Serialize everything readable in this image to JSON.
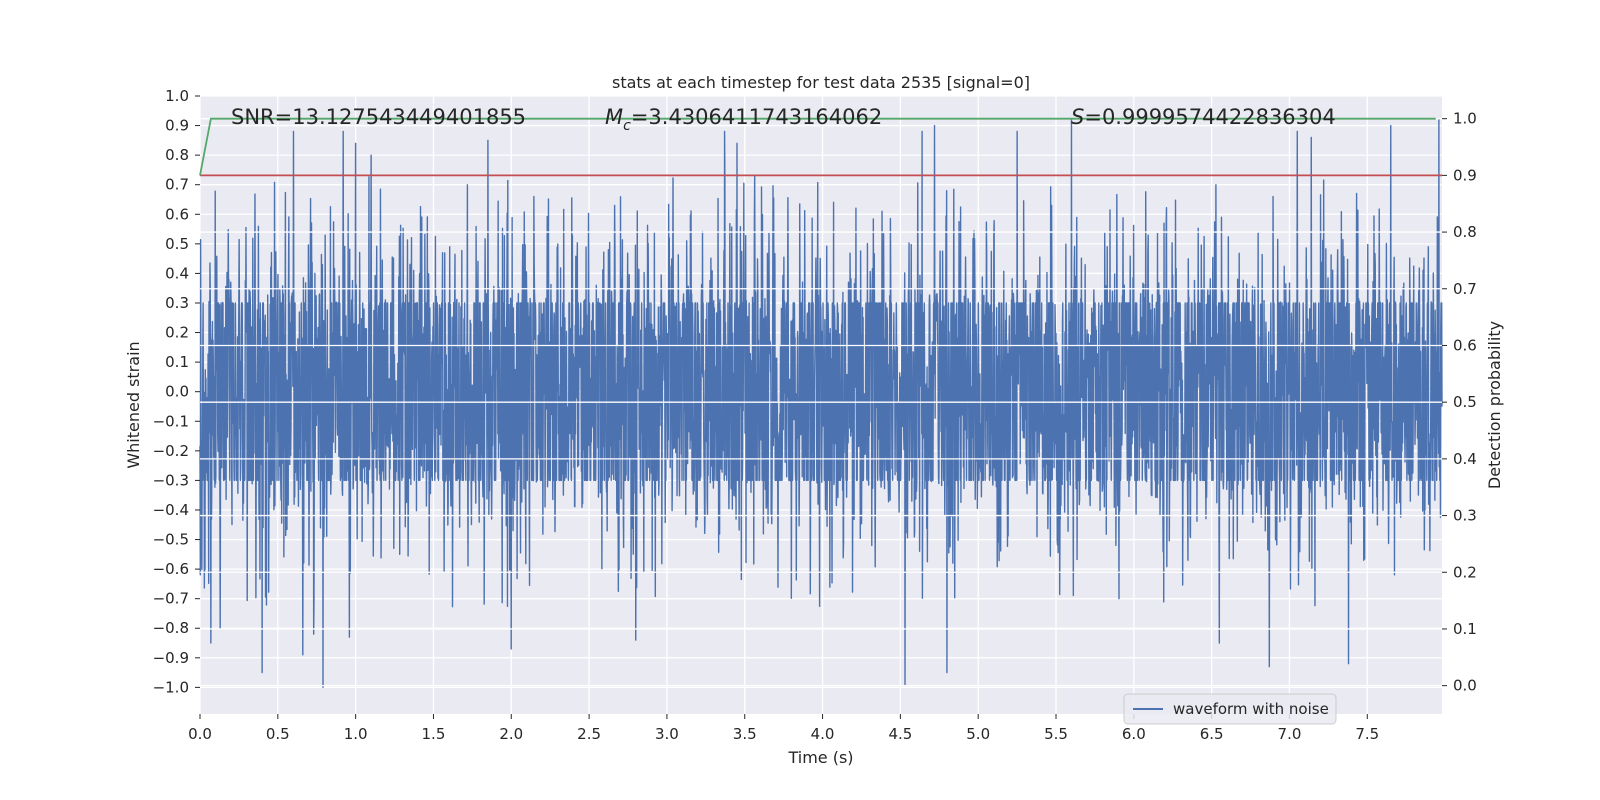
{
  "chart_data": {
    "type": "line",
    "title": "stats at each timestep for test data 2535 [signal=0]",
    "xlabel": "Time (s)",
    "ylabel": "Whitened strain",
    "y2label": "Detection probability",
    "xlim": [
      0.0,
      7.98
    ],
    "ylim": [
      -1.09,
      1.0
    ],
    "y2lim": [
      -0.05,
      1.04
    ],
    "xticks": [
      "0.0",
      "0.5",
      "1.0",
      "1.5",
      "2.0",
      "2.5",
      "3.0",
      "3.5",
      "4.0",
      "4.5",
      "5.0",
      "5.5",
      "6.0",
      "6.5",
      "7.0",
      "7.5"
    ],
    "yticks": [
      "1.0",
      "0.9",
      "0.8",
      "0.7",
      "0.6",
      "0.5",
      "0.4",
      "0.3",
      "0.2",
      "0.1",
      "0.0",
      "−0.1",
      "−0.2",
      "−0.3",
      "−0.4",
      "−0.5",
      "−0.6",
      "−0.7",
      "−0.8",
      "−0.9",
      "−1.0"
    ],
    "y2ticks": [
      "1.0",
      "0.9",
      "0.8",
      "0.7",
      "0.6",
      "0.5",
      "0.4",
      "0.3",
      "0.2",
      "0.1",
      "0.0"
    ],
    "annotations": {
      "snr": "SNR=13.127543449401855",
      "mc_symbol": "M",
      "mc_sub": "c",
      "mc_value": "=3.4306411743164062",
      "s_symbol": "S",
      "s_value": "=0.9999574422836304"
    },
    "legend": {
      "label": "waveform with noise",
      "location": "lower-right"
    },
    "series": [
      {
        "name": "waveform with noise",
        "color": "#4c72b0",
        "description": "dense noisy whitened strain, mostly within ±0.3 with peaks up to about 0.88 and troughs to about −1.0",
        "peaks": [
          {
            "t": 0.07,
            "v": -0.85
          },
          {
            "t": 0.13,
            "v": -0.8
          },
          {
            "t": 0.4,
            "v": -0.95
          },
          {
            "t": 0.6,
            "v": 0.88
          },
          {
            "t": 0.66,
            "v": -0.89
          },
          {
            "t": 0.73,
            "v": -0.82
          },
          {
            "t": 0.79,
            "v": -1.0
          },
          {
            "t": 0.92,
            "v": 0.88
          },
          {
            "t": 0.96,
            "v": -0.83
          },
          {
            "t": 1.0,
            "v": 0.84
          },
          {
            "t": 1.1,
            "v": 0.8
          },
          {
            "t": 1.85,
            "v": 0.85
          },
          {
            "t": 2.0,
            "v": -0.87
          },
          {
            "t": 2.8,
            "v": -0.84
          },
          {
            "t": 3.37,
            "v": 0.88
          },
          {
            "t": 3.45,
            "v": 0.84
          },
          {
            "t": 4.53,
            "v": -0.99
          },
          {
            "t": 4.64,
            "v": 0.88
          },
          {
            "t": 4.72,
            "v": 0.9
          },
          {
            "t": 4.8,
            "v": -0.95
          },
          {
            "t": 5.25,
            "v": 0.88
          },
          {
            "t": 5.6,
            "v": 0.92
          },
          {
            "t": 6.55,
            "v": -0.85
          },
          {
            "t": 6.87,
            "v": -0.93
          },
          {
            "t": 7.05,
            "v": 0.88
          },
          {
            "t": 7.14,
            "v": 0.86
          },
          {
            "t": 7.38,
            "v": -0.92
          },
          {
            "t": 7.65,
            "v": 0.9
          },
          {
            "t": 7.96,
            "v": 0.92
          }
        ]
      },
      {
        "name": "detection probability",
        "color": "#55a868",
        "axis": "right",
        "x": [
          0.0,
          0.07,
          0.1,
          7.94
        ],
        "values": [
          0.9,
          1.0,
          1.0,
          1.0
        ]
      },
      {
        "name": "threshold",
        "color": "#c44e52",
        "axis": "right",
        "x": [
          0.0,
          7.98
        ],
        "values": [
          0.9,
          0.9
        ]
      }
    ]
  }
}
